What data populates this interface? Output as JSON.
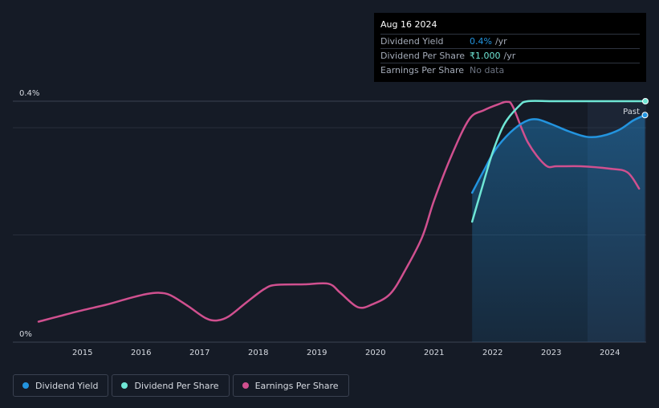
{
  "tooltip": {
    "date": "Aug 16 2024",
    "rows": [
      {
        "label": "Dividend Yield",
        "value": "0.4%",
        "unit": "/yr",
        "color": "#2394df"
      },
      {
        "label": "Dividend Per Share",
        "value": "₹1.000",
        "unit": "/yr",
        "color": "#6fe6d5"
      },
      {
        "label": "Earnings Per Share",
        "value": "No data",
        "unit": "",
        "color": "#6b7280"
      }
    ]
  },
  "legend": [
    {
      "label": "Dividend Yield",
      "color": "#2394df"
    },
    {
      "label": "Dividend Per Share",
      "color": "#6fe6d5"
    },
    {
      "label": "Earnings Per Share",
      "color": "#d0508f"
    }
  ],
  "chart_data": {
    "type": "line",
    "y_tick_labels": [
      "0%",
      "0.4%"
    ],
    "ylim": [
      0,
      0.4
    ],
    "xlim": [
      2014.25,
      2024.62
    ],
    "x_ticks": [
      2015,
      2016,
      2017,
      2018,
      2019,
      2020,
      2021,
      2022,
      2023,
      2024
    ],
    "past_label": "Past",
    "past_start": 2023.62,
    "grid": true,
    "legend_position": "bottom-left",
    "series": [
      {
        "name": "Dividend Yield",
        "color": "#2394df",
        "area": true,
        "points": [
          [
            2021.65,
            0.248
          ],
          [
            2021.85,
            0.285
          ],
          [
            2022.05,
            0.32
          ],
          [
            2022.3,
            0.348
          ],
          [
            2022.55,
            0.366
          ],
          [
            2022.75,
            0.37
          ],
          [
            2023.0,
            0.362
          ],
          [
            2023.3,
            0.35
          ],
          [
            2023.6,
            0.341
          ],
          [
            2023.85,
            0.342
          ],
          [
            2024.15,
            0.352
          ],
          [
            2024.4,
            0.368
          ],
          [
            2024.6,
            0.377
          ]
        ]
      },
      {
        "name": "Dividend Per Share",
        "color": "#6fe6d5",
        "points": [
          [
            2021.65,
            0.2
          ],
          [
            2021.8,
            0.25
          ],
          [
            2022.0,
            0.315
          ],
          [
            2022.2,
            0.362
          ],
          [
            2022.45,
            0.392
          ],
          [
            2022.6,
            0.4
          ],
          [
            2023.0,
            0.4
          ],
          [
            2023.5,
            0.4
          ],
          [
            2024.0,
            0.4
          ],
          [
            2024.62,
            0.4
          ]
        ]
      },
      {
        "name": "Earnings Per Share",
        "color": "#d0508f",
        "points": [
          [
            2014.25,
            0.034
          ],
          [
            2014.6,
            0.043
          ],
          [
            2015.0,
            0.053
          ],
          [
            2015.4,
            0.062
          ],
          [
            2015.8,
            0.073
          ],
          [
            2016.1,
            0.08
          ],
          [
            2016.3,
            0.082
          ],
          [
            2016.5,
            0.078
          ],
          [
            2016.8,
            0.06
          ],
          [
            2017.1,
            0.04
          ],
          [
            2017.3,
            0.036
          ],
          [
            2017.5,
            0.043
          ],
          [
            2017.8,
            0.066
          ],
          [
            2018.1,
            0.088
          ],
          [
            2018.3,
            0.095
          ],
          [
            2018.8,
            0.096
          ],
          [
            2019.2,
            0.097
          ],
          [
            2019.4,
            0.082
          ],
          [
            2019.7,
            0.058
          ],
          [
            2019.95,
            0.063
          ],
          [
            2020.25,
            0.08
          ],
          [
            2020.5,
            0.118
          ],
          [
            2020.8,
            0.175
          ],
          [
            2021.0,
            0.235
          ],
          [
            2021.3,
            0.31
          ],
          [
            2021.6,
            0.37
          ],
          [
            2021.85,
            0.385
          ],
          [
            2022.1,
            0.395
          ],
          [
            2022.25,
            0.399
          ],
          [
            2022.35,
            0.39
          ],
          [
            2022.6,
            0.332
          ],
          [
            2022.9,
            0.294
          ],
          [
            2023.1,
            0.292
          ],
          [
            2023.5,
            0.292
          ],
          [
            2024.0,
            0.288
          ],
          [
            2024.3,
            0.282
          ],
          [
            2024.5,
            0.255
          ]
        ]
      }
    ]
  }
}
